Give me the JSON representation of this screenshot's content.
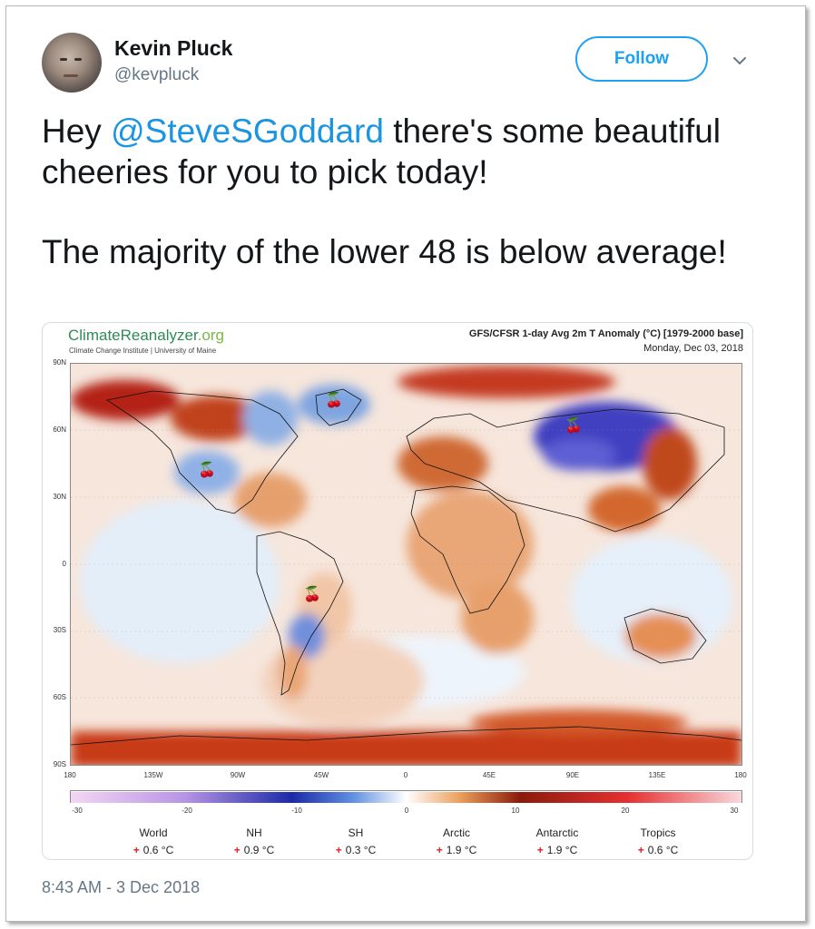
{
  "author": {
    "name": "Kevin Pluck",
    "handle": "@kevpluck",
    "follow_label": "Follow"
  },
  "tweet": {
    "prefix": "Hey ",
    "mention": "@SteveSGoddard",
    "line1_rest": " there's some beautiful cheeries for you to pick today!",
    "paragraph2": "The majority of the lower 48 is below average!"
  },
  "map_card": {
    "logo_main": "ClimateReanalyzer",
    "logo_domain": ".org",
    "logo_sub": "Climate Change Institute | University of Maine",
    "title": "GFS/CFSR 1-day Avg 2m T Anomaly (°C) [1979-2000 base]",
    "date": "Monday, Dec 03, 2018",
    "lat_labels": [
      "90N",
      "60N",
      "30N",
      "0",
      "30S",
      "60S",
      "90S"
    ],
    "lon_labels": [
      "180",
      "135W",
      "90W",
      "45W",
      "0",
      "45E",
      "90E",
      "135E",
      "180"
    ],
    "colorbar_ticks": [
      "-30",
      "-20",
      "-10",
      "0",
      "10",
      "20",
      "30"
    ],
    "stats": [
      {
        "label": "World",
        "value": "0.6 °C"
      },
      {
        "label": "NH",
        "value": "0.9 °C"
      },
      {
        "label": "SH",
        "value": "0.3 °C"
      },
      {
        "label": "Arctic",
        "value": "1.9 °C"
      },
      {
        "label": "Antarctic",
        "value": "1.9 °C"
      },
      {
        "label": "Tropics",
        "value": "0.6 °C"
      }
    ],
    "stat_plus": "+",
    "cherry_emoji": "🍒"
  },
  "timestamp": "8:43 AM - 3 Dec 2018",
  "colors": {
    "accent": "#1da1f2",
    "mention": "#1b95e0",
    "muted": "#657786"
  }
}
